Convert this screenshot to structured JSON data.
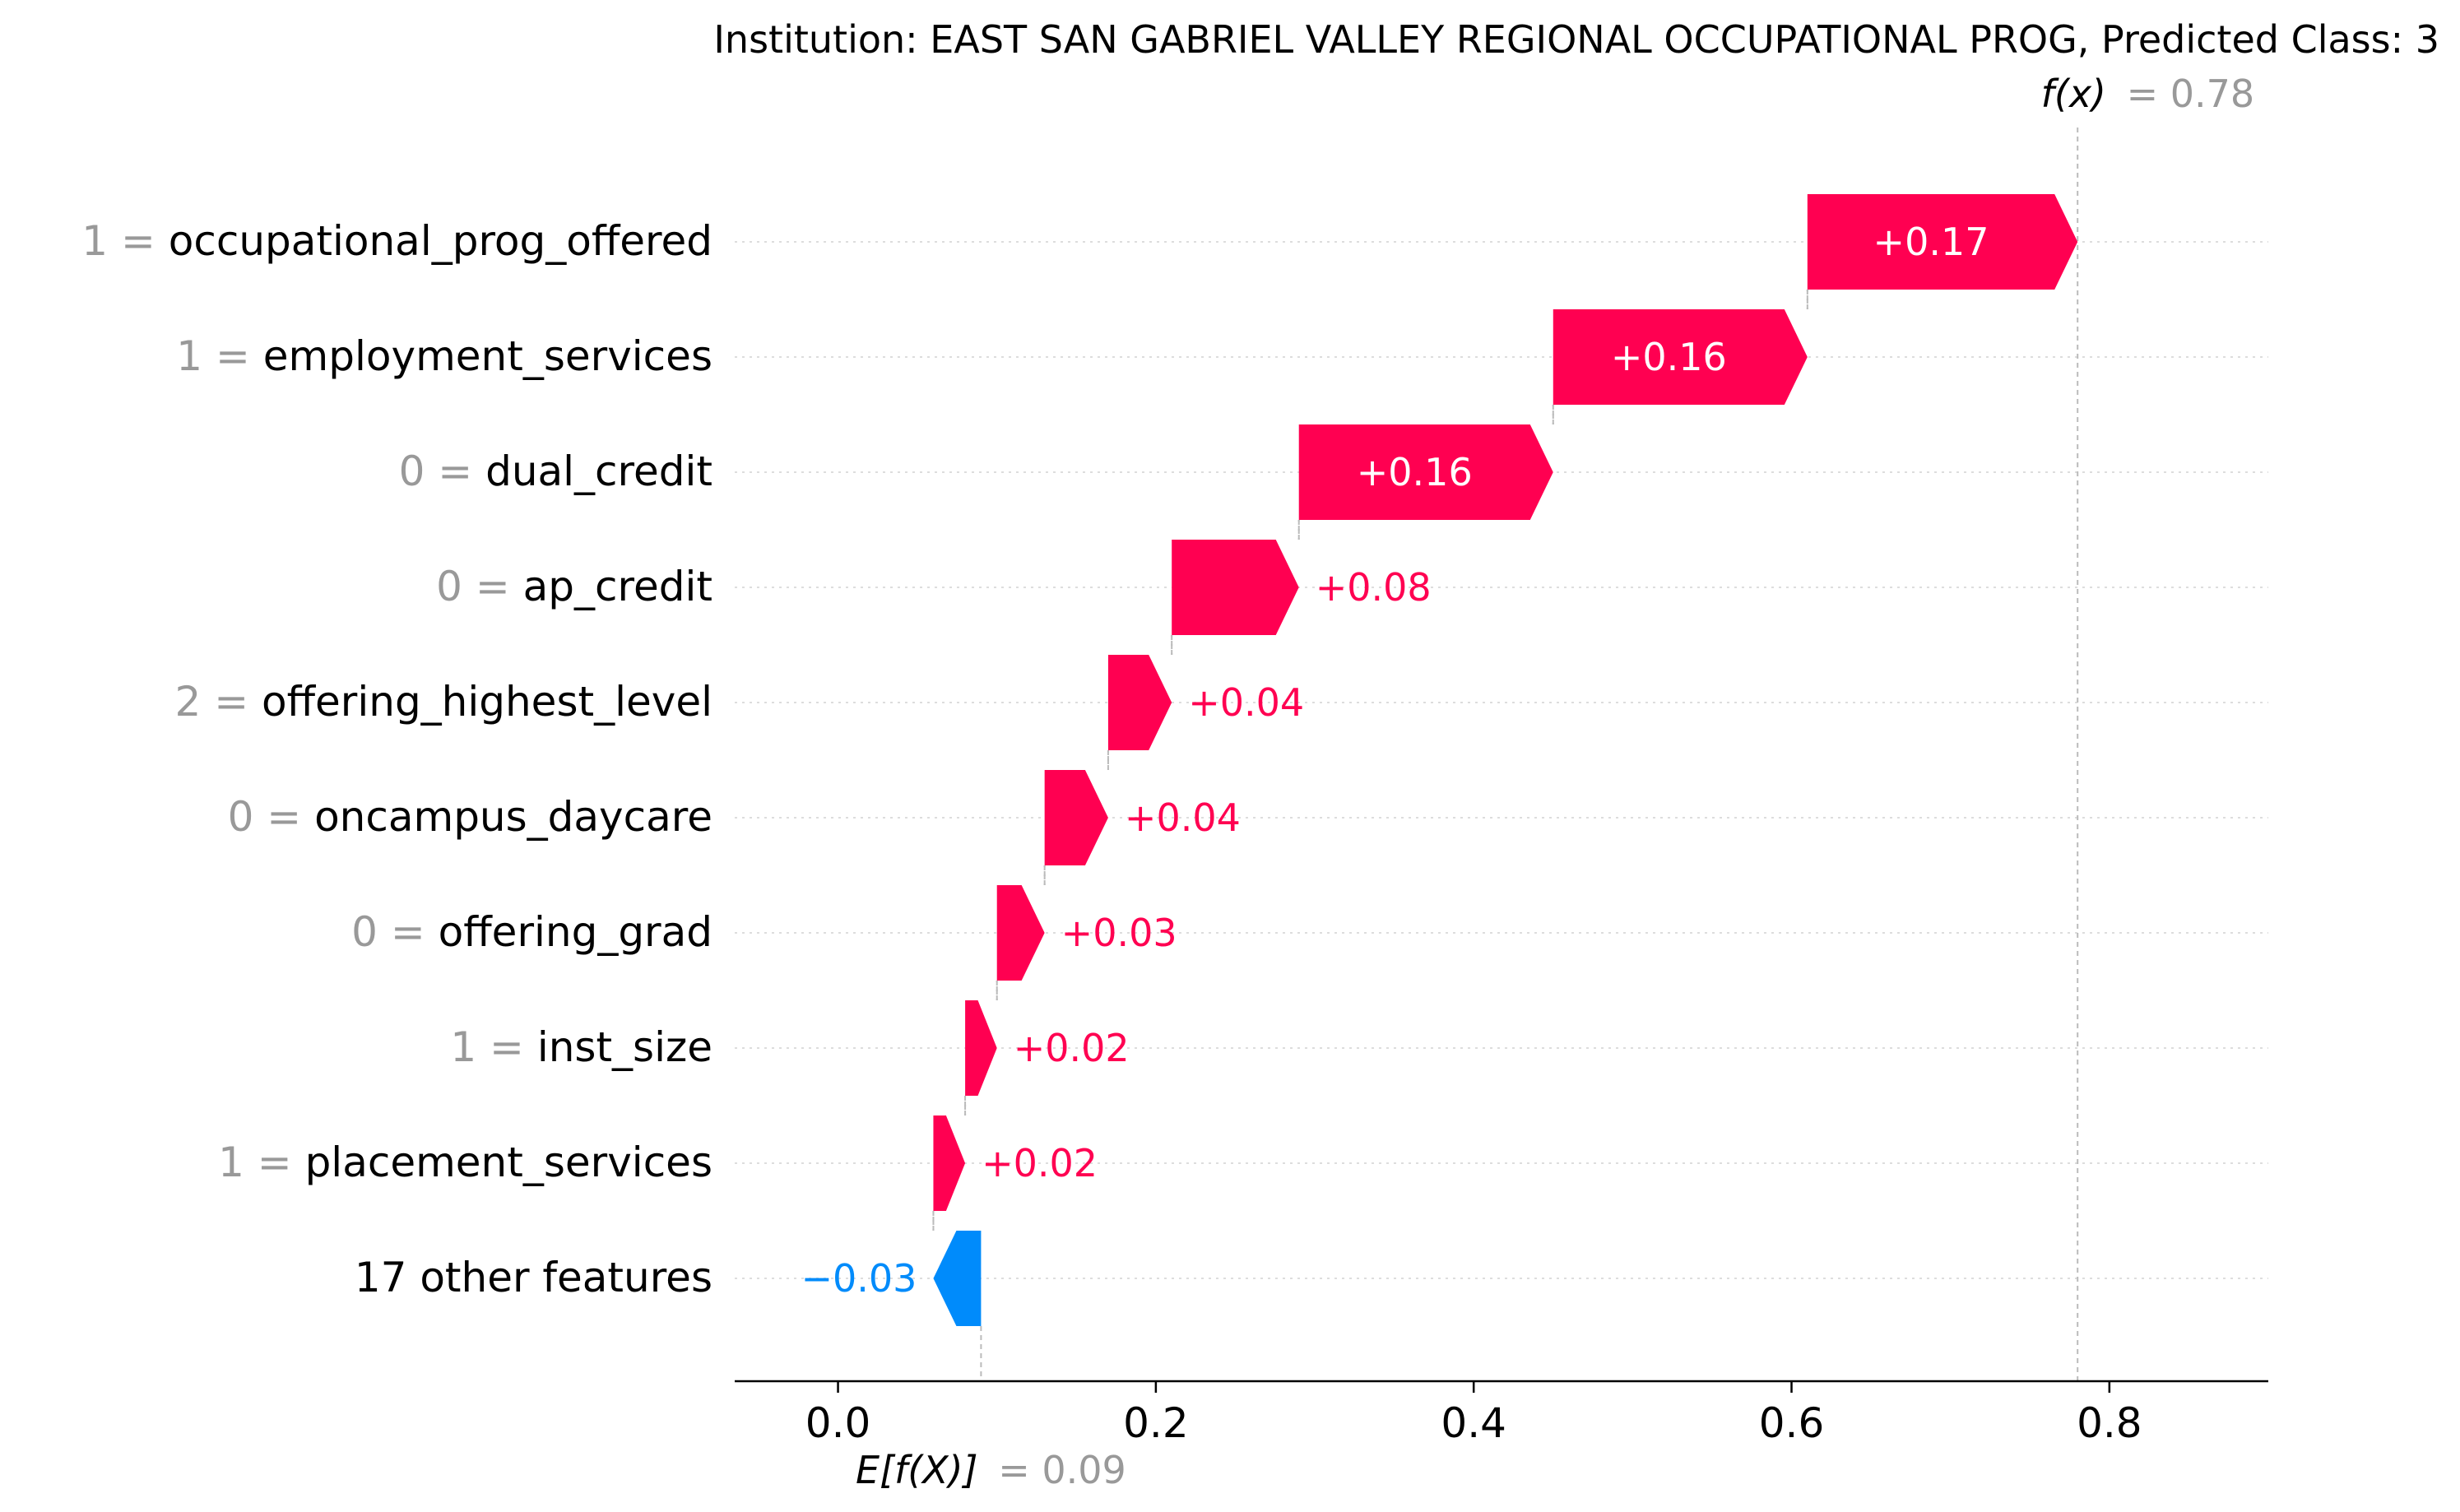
{
  "colors": {
    "positive": "#ff0051",
    "negative": "#008bfb",
    "text": "#000000",
    "muted": "#999999",
    "grid": "#cccccc"
  },
  "chart_data": {
    "type": "waterfall",
    "title": "Institution: EAST SAN GABRIEL VALLEY REGIONAL OCCUPATIONAL PROG, Predicted Class: 3",
    "base_value": 0.09,
    "base_label": "E[f(X)]",
    "base_value_text": "= 0.09",
    "output_value": 0.78,
    "output_label": "f(x)",
    "output_value_text": "= 0.78",
    "xlim": [
      -0.065,
      0.9
    ],
    "xticks": [
      0.0,
      0.2,
      0.4,
      0.6,
      0.8
    ],
    "xtick_labels": [
      "0.0",
      "0.2",
      "0.4",
      "0.6",
      "0.8"
    ],
    "grid": "horizontal dotted",
    "features": [
      {
        "value_text": "1 =",
        "name": "occupational_prog_offered",
        "contribution": 0.17,
        "label": "+0.17"
      },
      {
        "value_text": "1 =",
        "name": "employment_services",
        "contribution": 0.16,
        "label": "+0.16"
      },
      {
        "value_text": "0 =",
        "name": "dual_credit",
        "contribution": 0.16,
        "label": "+0.16"
      },
      {
        "value_text": "0 =",
        "name": "ap_credit",
        "contribution": 0.08,
        "label": "+0.08"
      },
      {
        "value_text": "2 =",
        "name": "offering_highest_level",
        "contribution": 0.04,
        "label": "+0.04"
      },
      {
        "value_text": "0 =",
        "name": "oncampus_daycare",
        "contribution": 0.04,
        "label": "+0.04"
      },
      {
        "value_text": "0 =",
        "name": "offering_grad",
        "contribution": 0.03,
        "label": "+0.03"
      },
      {
        "value_text": "1 =",
        "name": "inst_size",
        "contribution": 0.02,
        "label": "+0.02"
      },
      {
        "value_text": "1 =",
        "name": "placement_services",
        "contribution": 0.02,
        "label": "+0.02"
      },
      {
        "value_text": "",
        "name": "17 other features",
        "contribution": -0.03,
        "label": "−0.03"
      }
    ]
  }
}
